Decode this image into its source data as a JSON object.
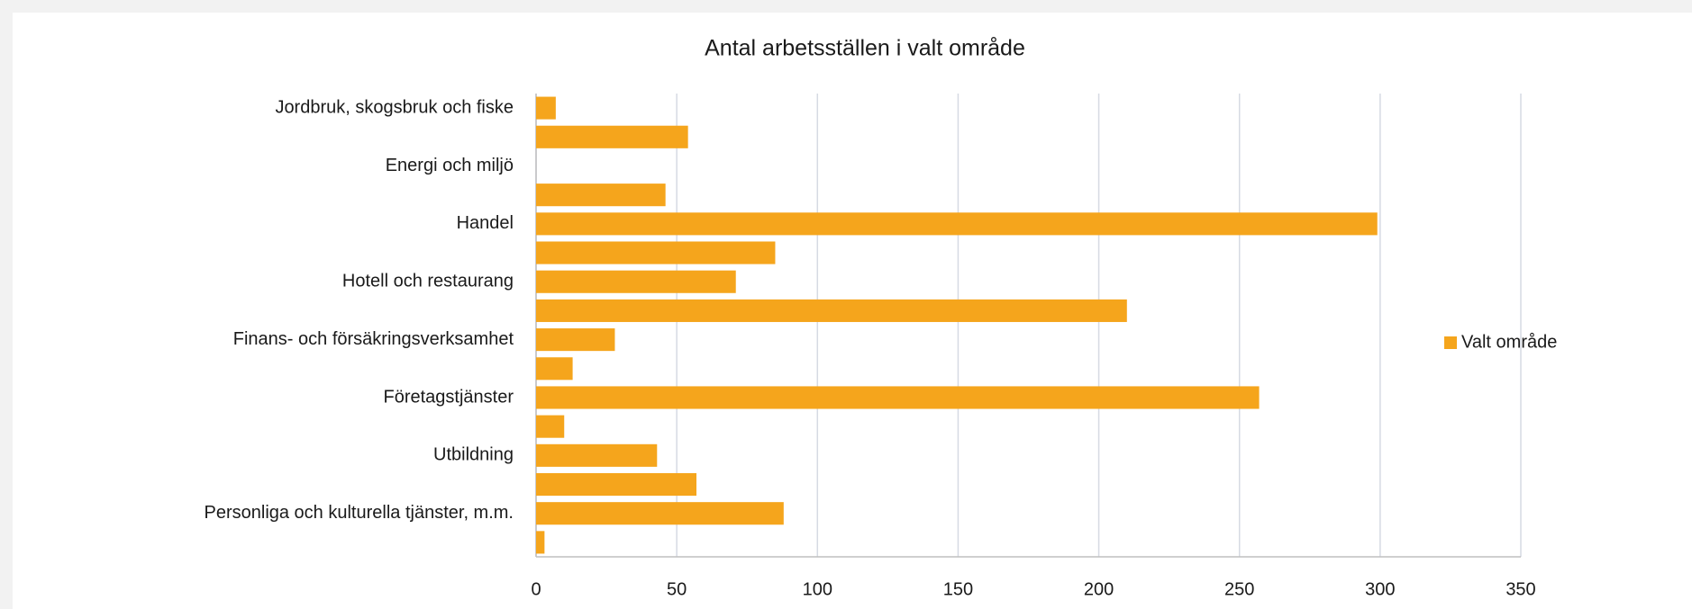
{
  "chart_data": {
    "type": "bar",
    "orientation": "horizontal",
    "title": "Antal arbetsställen i valt område",
    "categories": [
      "Jordbruk, skogsbruk och fiske",
      null,
      "Energi och miljö",
      null,
      "Handel",
      null,
      "Hotell och restaurang",
      null,
      "Finans- och försäkringsverksamhet",
      null,
      "Företagstjänster",
      null,
      "Utbildning",
      null,
      "Personliga och kulturella tjänster, m.m.",
      null
    ],
    "series": [
      {
        "name": "Valt område",
        "color": "#f5a51c",
        "values": [
          7,
          54,
          0,
          46,
          299,
          85,
          71,
          210,
          28,
          13,
          257,
          10,
          43,
          57,
          88,
          3
        ]
      }
    ],
    "xlim": [
      0,
      350
    ],
    "xticks": [
      0,
      50,
      100,
      150,
      200,
      250,
      300,
      350
    ],
    "grid": true,
    "legend": "right"
  }
}
